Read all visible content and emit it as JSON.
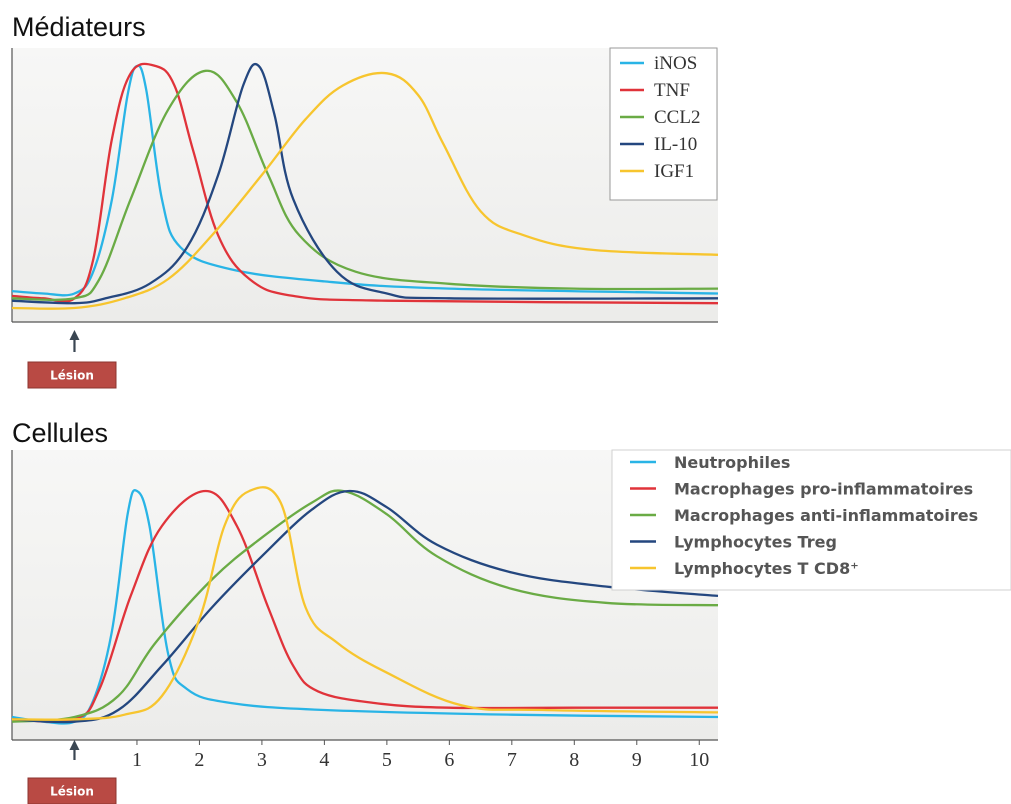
{
  "titles": {
    "top": "Médiateurs",
    "bottom": "Cellules"
  },
  "lesion_label": "Lésion",
  "colors": {
    "blue": "#29b4e6",
    "red": "#e0333a",
    "green": "#6aab45",
    "navy": "#24477f",
    "yellow": "#f7c52e",
    "lesion_box": "#b94a44"
  },
  "chart_data": [
    {
      "type": "line",
      "title": "Médiateurs",
      "xlim": [
        -1,
        10.3
      ],
      "ylim": [
        0,
        1
      ],
      "lesion_x": 0,
      "legend_position": "top-right",
      "series": [
        {
          "name": "iNOS",
          "color": "#29b4e6",
          "points": [
            [
              -1,
              0.07
            ],
            [
              -0.5,
              0.06
            ],
            [
              0,
              0.06
            ],
            [
              0.3,
              0.15
            ],
            [
              0.6,
              0.45
            ],
            [
              0.85,
              0.88
            ],
            [
              1,
              1.0
            ],
            [
              1.15,
              0.9
            ],
            [
              1.4,
              0.45
            ],
            [
              1.7,
              0.25
            ],
            [
              2.5,
              0.16
            ],
            [
              4,
              0.11
            ],
            [
              6,
              0.08
            ],
            [
              10.3,
              0.06
            ]
          ]
        },
        {
          "name": "TNF",
          "color": "#e0333a",
          "points": [
            [
              -1,
              0.05
            ],
            [
              -0.5,
              0.04
            ],
            [
              0,
              0.04
            ],
            [
              0.3,
              0.2
            ],
            [
              0.6,
              0.7
            ],
            [
              0.9,
              0.97
            ],
            [
              1.3,
              1.0
            ],
            [
              1.6,
              0.92
            ],
            [
              1.9,
              0.65
            ],
            [
              2.3,
              0.3
            ],
            [
              2.8,
              0.12
            ],
            [
              3.5,
              0.05
            ],
            [
              5,
              0.03
            ],
            [
              10.3,
              0.02
            ]
          ]
        },
        {
          "name": "CCL2",
          "color": "#6aab45",
          "points": [
            [
              -1,
              0.04
            ],
            [
              0,
              0.04
            ],
            [
              0.4,
              0.12
            ],
            [
              0.9,
              0.45
            ],
            [
              1.5,
              0.82
            ],
            [
              2.1,
              0.98
            ],
            [
              2.6,
              0.85
            ],
            [
              3.1,
              0.55
            ],
            [
              3.6,
              0.3
            ],
            [
              4.5,
              0.15
            ],
            [
              6,
              0.1
            ],
            [
              8,
              0.08
            ],
            [
              10.3,
              0.08
            ]
          ]
        },
        {
          "name": "IL-10",
          "color": "#24477f",
          "points": [
            [
              -1,
              0.03
            ],
            [
              0,
              0.02
            ],
            [
              0.5,
              0.04
            ],
            [
              1.2,
              0.1
            ],
            [
              1.8,
              0.25
            ],
            [
              2.3,
              0.55
            ],
            [
              2.7,
              0.92
            ],
            [
              2.95,
              1.0
            ],
            [
              3.2,
              0.8
            ],
            [
              3.5,
              0.45
            ],
            [
              4.2,
              0.15
            ],
            [
              5,
              0.06
            ],
            [
              6,
              0.04
            ],
            [
              10.3,
              0.04
            ]
          ]
        },
        {
          "name": "IGF1",
          "color": "#f7c52e",
          "points": [
            [
              -1,
              0.0
            ],
            [
              0,
              0.0
            ],
            [
              0.8,
              0.04
            ],
            [
              1.5,
              0.12
            ],
            [
              2.2,
              0.3
            ],
            [
              3,
              0.55
            ],
            [
              3.7,
              0.78
            ],
            [
              4.3,
              0.92
            ],
            [
              5,
              0.97
            ],
            [
              5.5,
              0.88
            ],
            [
              5.9,
              0.68
            ],
            [
              6.5,
              0.4
            ],
            [
              7.2,
              0.3
            ],
            [
              8.3,
              0.24
            ],
            [
              10.3,
              0.22
            ]
          ]
        }
      ]
    },
    {
      "type": "line",
      "title": "Cellules",
      "xlim": [
        -1,
        10.3
      ],
      "ylim": [
        0,
        1
      ],
      "lesion_x": 0,
      "xticks": [
        "1",
        "2",
        "3",
        "4",
        "5",
        "6",
        "7",
        "8",
        "9",
        "10"
      ],
      "legend_position": "top-right",
      "series": [
        {
          "name": "Neutrophiles",
          "color": "#29b4e6",
          "points": [
            [
              -1,
              0.03
            ],
            [
              -0.5,
              0.01
            ],
            [
              0,
              0.01
            ],
            [
              0.3,
              0.1
            ],
            [
              0.6,
              0.4
            ],
            [
              0.85,
              0.9
            ],
            [
              1,
              1.0
            ],
            [
              1.2,
              0.85
            ],
            [
              1.5,
              0.3
            ],
            [
              1.8,
              0.15
            ],
            [
              2.5,
              0.09
            ],
            [
              4,
              0.06
            ],
            [
              7,
              0.04
            ],
            [
              10.3,
              0.03
            ]
          ]
        },
        {
          "name": "Macrophages pro-inflammatoires",
          "color": "#e0333a",
          "points": [
            [
              -1,
              0.02
            ],
            [
              0,
              0.02
            ],
            [
              0.4,
              0.15
            ],
            [
              0.9,
              0.55
            ],
            [
              1.4,
              0.85
            ],
            [
              2.1,
              1.0
            ],
            [
              2.6,
              0.85
            ],
            [
              3.1,
              0.5
            ],
            [
              3.5,
              0.25
            ],
            [
              3.9,
              0.14
            ],
            [
              4.8,
              0.09
            ],
            [
              6,
              0.07
            ],
            [
              8,
              0.07
            ],
            [
              10.3,
              0.07
            ]
          ]
        },
        {
          "name": "Macrophages anti-inflammatoires",
          "color": "#6aab45",
          "points": [
            [
              -1,
              0.01
            ],
            [
              0,
              0.03
            ],
            [
              0.7,
              0.12
            ],
            [
              1.3,
              0.35
            ],
            [
              2.2,
              0.62
            ],
            [
              3,
              0.8
            ],
            [
              3.8,
              0.95
            ],
            [
              4.3,
              1.0
            ],
            [
              5,
              0.9
            ],
            [
              5.8,
              0.72
            ],
            [
              7,
              0.58
            ],
            [
              8.5,
              0.52
            ],
            [
              10.3,
              0.51
            ]
          ]
        },
        {
          "name": "Lymphocytes Treg",
          "color": "#24477f",
          "points": [
            [
              -1,
              0.02
            ],
            [
              0,
              0.01
            ],
            [
              0.7,
              0.06
            ],
            [
              1.4,
              0.25
            ],
            [
              2.2,
              0.5
            ],
            [
              3,
              0.72
            ],
            [
              3.8,
              0.92
            ],
            [
              4.4,
              1.0
            ],
            [
              5,
              0.93
            ],
            [
              5.8,
              0.77
            ],
            [
              7,
              0.65
            ],
            [
              8.5,
              0.59
            ],
            [
              10.3,
              0.55
            ]
          ]
        },
        {
          "name": "Lymphocytes T CD8⁺",
          "color": "#f7c52e",
          "points": [
            [
              -1,
              0.02
            ],
            [
              0,
              0.02
            ],
            [
              0.8,
              0.04
            ],
            [
              1.4,
              0.12
            ],
            [
              2,
              0.45
            ],
            [
              2.4,
              0.85
            ],
            [
              2.8,
              1.0
            ],
            [
              3.3,
              0.95
            ],
            [
              3.7,
              0.5
            ],
            [
              4.2,
              0.35
            ],
            [
              5,
              0.22
            ],
            [
              6.2,
              0.08
            ],
            [
              7.5,
              0.06
            ],
            [
              10.3,
              0.05
            ]
          ]
        }
      ]
    }
  ]
}
